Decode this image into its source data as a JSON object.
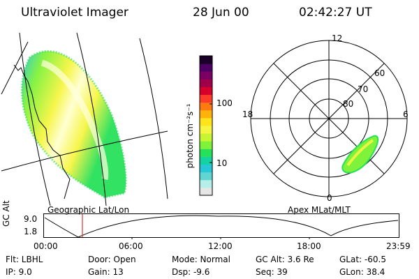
{
  "header": {
    "instrument": "Ultraviolet Imager",
    "date": "28 Jun 00",
    "time": "02:42:27 UT"
  },
  "left_panel": {
    "caption": "Geographic Lat/Lon"
  },
  "right_panel": {
    "caption": "Apex MLat/MLT",
    "mlt_labels": [
      "12",
      "18",
      "6",
      "0"
    ],
    "lat_labels": [
      "60",
      "70",
      "80"
    ]
  },
  "colorbar": {
    "unit_label": "photon cm⁻²s⁻¹",
    "tick_labels": [
      "100",
      "10"
    ],
    "colors": [
      "#e6e6e6",
      "#b6efe9",
      "#5fd6d1",
      "#27c7d8",
      "#13d3a2",
      "#27e05a",
      "#7ff23a",
      "#c6f531",
      "#f6f542",
      "#ffe31b",
      "#ffb20a",
      "#ff7a10",
      "#ff3c2a",
      "#d7002b",
      "#a0004a",
      "#7a0064",
      "#4c0066",
      "#1a0026"
    ]
  },
  "altitude_plot": {
    "y_label": "GC Alt",
    "y_ticks": [
      "9.0",
      "1.8"
    ],
    "x_ticks": [
      "00:00",
      "06:00",
      "12:00",
      "18:00",
      "23:59"
    ],
    "current_time_marker": "02:42"
  },
  "info": {
    "row1": {
      "flt": "Flt:  LBHL",
      "door": "Door:  Open",
      "mode": "Mode:  Normal",
      "gcalt": "GC Alt:  3.6 Re",
      "glat": "GLat:  -60.5"
    },
    "row2": {
      "ip": "IP:   9.0",
      "gain": "Gain:  13",
      "dsp": "Dsp:     -9.6",
      "seq": "Seq:  39",
      "glon": "GLon:   38.4"
    }
  }
}
